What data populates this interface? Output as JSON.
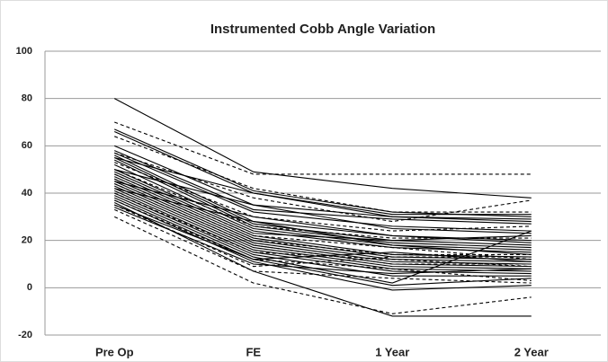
{
  "chart_data": {
    "type": "line",
    "title": "Instrumented Cobb Angle Variation",
    "categories": [
      "Pre Op",
      "FE",
      "1 Year",
      "2 Year"
    ],
    "ylim": [
      -20,
      100
    ],
    "yticks": [
      -20,
      0,
      20,
      40,
      60,
      80,
      100
    ],
    "grid": true,
    "series": [
      {
        "color": "#000",
        "dashed": false,
        "values": [
          80,
          49,
          42,
          38
        ]
      },
      {
        "color": "#000",
        "dashed": false,
        "values": [
          67,
          41,
          32,
          30
        ]
      },
      {
        "color": "#000",
        "dashed": false,
        "values": [
          66,
          40,
          31,
          31
        ]
      },
      {
        "color": "#000",
        "dashed": false,
        "values": [
          60,
          35,
          30,
          29
        ]
      },
      {
        "color": "#000",
        "dashed": false,
        "values": [
          58,
          33,
          29,
          27
        ]
      },
      {
        "color": "#000",
        "dashed": false,
        "values": [
          57,
          32,
          26,
          24
        ]
      },
      {
        "color": "#000",
        "dashed": false,
        "values": [
          56,
          28,
          22,
          20
        ]
      },
      {
        "color": "#000",
        "dashed": false,
        "values": [
          55,
          27,
          20,
          18
        ]
      },
      {
        "color": "#000",
        "dashed": false,
        "values": [
          54,
          26,
          19,
          17
        ]
      },
      {
        "color": "#000",
        "dashed": false,
        "values": [
          52,
          25,
          18,
          16
        ]
      },
      {
        "color": "#000",
        "dashed": false,
        "values": [
          50,
          24,
          17,
          15
        ]
      },
      {
        "color": "#000",
        "dashed": false,
        "values": [
          49,
          23,
          20,
          22
        ]
      },
      {
        "color": "#000",
        "dashed": false,
        "values": [
          48,
          22,
          14,
          13
        ]
      },
      {
        "color": "#000",
        "dashed": false,
        "values": [
          47,
          21,
          13,
          12
        ]
      },
      {
        "color": "#000",
        "dashed": false,
        "values": [
          46,
          20,
          12,
          11
        ]
      },
      {
        "color": "#000",
        "dashed": false,
        "values": [
          45,
          19,
          11,
          10
        ]
      },
      {
        "color": "#000",
        "dashed": false,
        "values": [
          44,
          18,
          10,
          9
        ]
      },
      {
        "color": "#000",
        "dashed": false,
        "values": [
          43,
          17,
          9,
          8
        ]
      },
      {
        "color": "#000",
        "dashed": false,
        "values": [
          42,
          16,
          8,
          7
        ]
      },
      {
        "color": "#000",
        "dashed": false,
        "values": [
          41,
          15,
          7,
          6
        ]
      },
      {
        "color": "#000",
        "dashed": false,
        "values": [
          40,
          14,
          5,
          5
        ]
      },
      {
        "color": "#000",
        "dashed": false,
        "values": [
          39,
          13,
          2,
          24
        ]
      },
      {
        "color": "#000",
        "dashed": false,
        "values": [
          38,
          12,
          1,
          4
        ]
      },
      {
        "color": "#000",
        "dashed": false,
        "values": [
          37,
          11,
          -1,
          1
        ]
      },
      {
        "color": "#000",
        "dashed": false,
        "values": [
          36,
          7,
          -12,
          -12
        ]
      },
      {
        "color": "#000",
        "dashed": false,
        "values": [
          35,
          12,
          15,
          11
        ]
      },
      {
        "color": "#000",
        "dashed": false,
        "values": [
          34,
          10,
          6,
          8
        ]
      },
      {
        "color": "#000",
        "dashed": false,
        "values": [
          42,
          28,
          18,
          14
        ]
      },
      {
        "color": "#000",
        "dashed": false,
        "values": [
          45,
          30,
          22,
          19
        ]
      },
      {
        "color": "#000",
        "dashed": false,
        "values": [
          50,
          35,
          25,
          23
        ]
      },
      {
        "color": "#000",
        "dashed": false,
        "values": [
          55,
          40,
          30,
          28
        ]
      },
      {
        "color": "#000",
        "dashed": true,
        "values": [
          70,
          48,
          48,
          48
        ]
      },
      {
        "color": "#000",
        "dashed": true,
        "values": [
          64,
          42,
          32,
          32
        ]
      },
      {
        "color": "#000",
        "dashed": true,
        "values": [
          57,
          38,
          28,
          37
        ]
      },
      {
        "color": "#000",
        "dashed": true,
        "values": [
          53,
          30,
          24,
          26
        ]
      },
      {
        "color": "#000",
        "dashed": true,
        "values": [
          50,
          26,
          21,
          21
        ]
      },
      {
        "color": "#000",
        "dashed": true,
        "values": [
          48,
          22,
          17,
          12
        ]
      },
      {
        "color": "#000",
        "dashed": true,
        "values": [
          46,
          20,
          14,
          14
        ]
      },
      {
        "color": "#000",
        "dashed": true,
        "values": [
          44,
          18,
          10,
          10
        ]
      },
      {
        "color": "#000",
        "dashed": true,
        "values": [
          40,
          15,
          12,
          9
        ]
      },
      {
        "color": "#000",
        "dashed": true,
        "values": [
          37,
          12,
          8,
          3
        ]
      },
      {
        "color": "#000",
        "dashed": true,
        "values": [
          33,
          7,
          4,
          2
        ]
      },
      {
        "color": "#000",
        "dashed": true,
        "values": [
          30,
          2,
          -11,
          -4
        ]
      },
      {
        "color": "#000",
        "dashed": true,
        "values": [
          35,
          9,
          13,
          13
        ]
      }
    ]
  }
}
